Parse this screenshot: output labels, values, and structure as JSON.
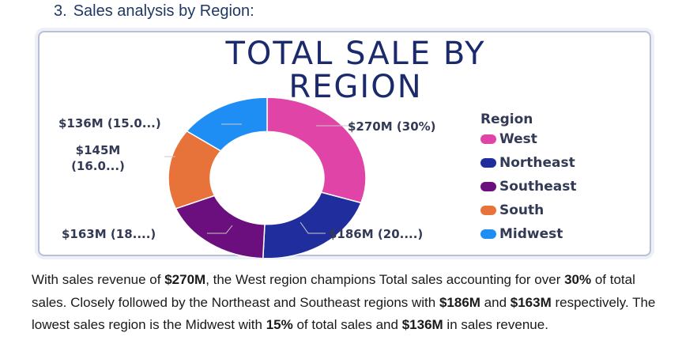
{
  "heading": {
    "number": "3.",
    "text": "Sales analysis by Region:"
  },
  "chart_data": {
    "type": "pie",
    "title_line1": "TOTAL SALE BY",
    "title_line2": "REGION",
    "legend_title": "Region",
    "categories": [
      "West",
      "Northeast",
      "Southeast",
      "South",
      "Midwest"
    ],
    "values": [
      270,
      186,
      163,
      145,
      136
    ],
    "labels": [
      "$270M (30%)",
      "$186M (20....)",
      "$163M (18....)",
      "$145M (16.0...)",
      "$136M (15.0...)"
    ],
    "colors": [
      "#e044a7",
      "#1f2e9c",
      "#6b0f7e",
      "#e8733a",
      "#1e8ef5"
    ],
    "legend_placement": "right",
    "donut": true
  },
  "paragraph": {
    "t1": "With sales revenue of ",
    "b1": "$270M",
    "t2": ", the West region champions Total sales accounting for over ",
    "b2": "30%",
    "t3": " of total sales. Closely followed by the Northeast and Southeast regions with ",
    "b3": "$186M",
    "t4": " and ",
    "b4": "$163M",
    "t5": " respectively. The lowest sales region is the Midwest with ",
    "b5": "15%",
    "t6": " of total sales and ",
    "b6": "$136M",
    "t7": " in sales revenue."
  }
}
